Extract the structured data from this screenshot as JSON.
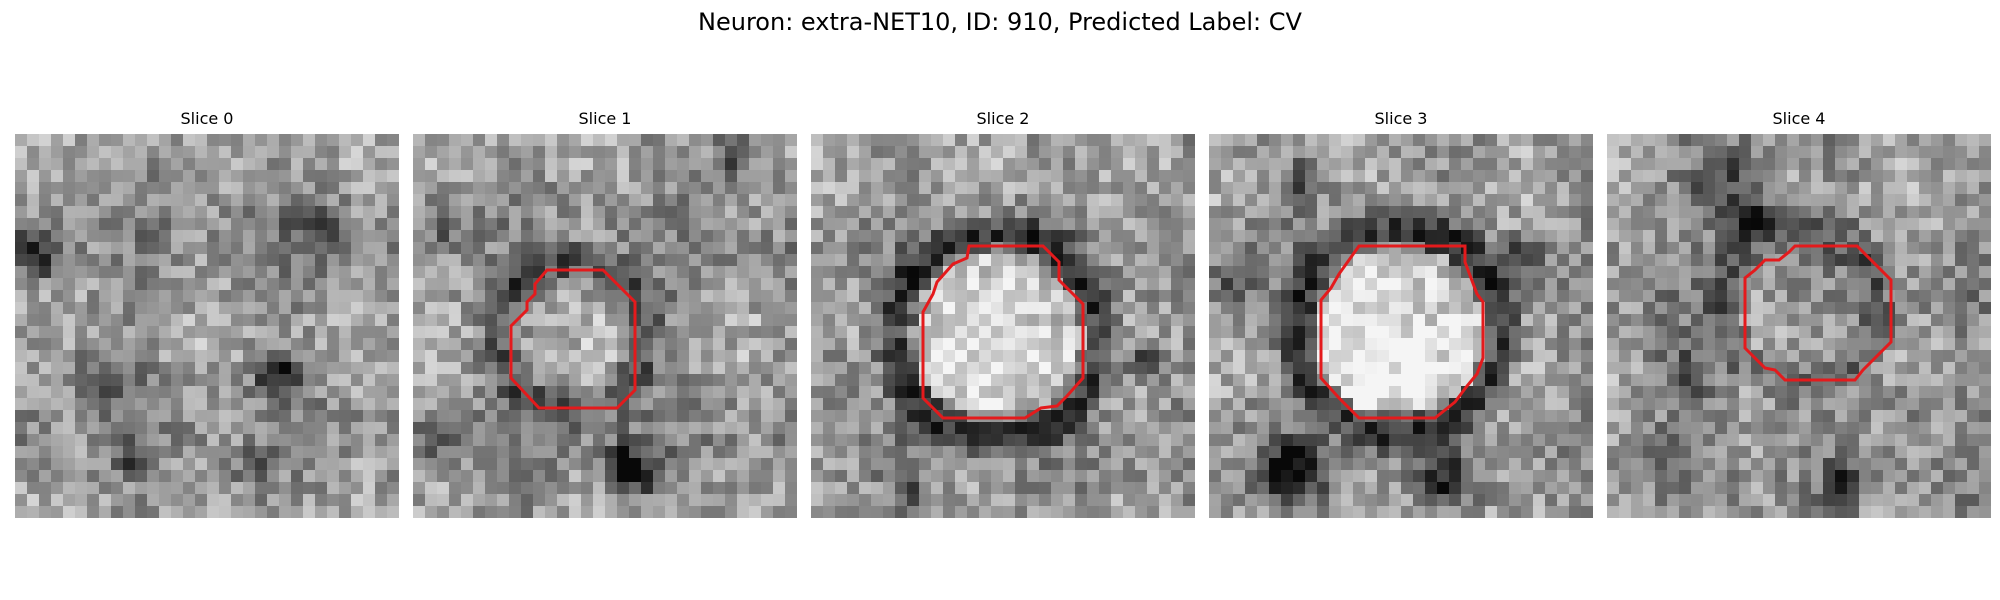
{
  "figure": {
    "title": "Neuron: extra-NET10, ID: 910, Predicted Label: CV"
  },
  "overlay_color": "#e41a1c",
  "colormap": "gray",
  "slices": [
    {
      "title": "Slice 0",
      "has_contour": false
    },
    {
      "title": "Slice 1",
      "has_contour": true
    },
    {
      "title": "Slice 2",
      "has_contour": true
    },
    {
      "title": "Slice 3",
      "has_contour": true
    },
    {
      "title": "Slice 4",
      "has_contour": true
    }
  ]
}
